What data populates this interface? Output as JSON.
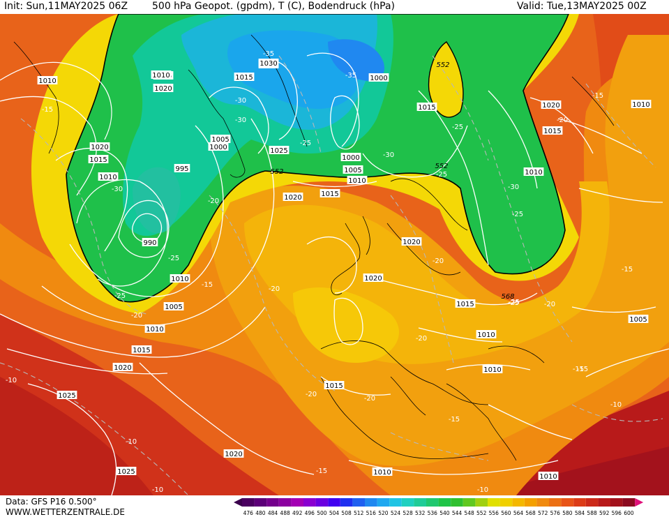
{
  "header": {
    "init": "Init: Sun,11MAY2025 06Z",
    "title": "500 hPa Geopot. (gpdm), T (C), Bodendruck (hPa)",
    "valid": "Valid: Tue,13MAY2025 00Z"
  },
  "footer": {
    "data_source": "Data: GFS P16 0.500°",
    "website": "WWW.WETTERZENTRALE.DE"
  },
  "legend": {
    "values": [
      "476",
      "480",
      "484",
      "488",
      "492",
      "496",
      "500",
      "504",
      "508",
      "512",
      "516",
      "520",
      "524",
      "528",
      "532",
      "536",
      "540",
      "544",
      "548",
      "552",
      "556",
      "560",
      "564",
      "568",
      "572",
      "576",
      "580",
      "584",
      "588",
      "592",
      "596",
      "600"
    ]
  },
  "colors": {
    "deep_low": "#1fb0e8",
    "low": "#3ecb55",
    "green": "#10c040",
    "yellow": "#f0e000",
    "orange": "#f3a40a",
    "red_orange": "#e8561a",
    "red": "#cc2a1a",
    "dark_red": "#a8121c"
  },
  "pressure_labels": [
    {
      "text": "1010"
    },
    {
      "text": "1015"
    },
    {
      "text": "1020"
    },
    {
      "text": "1015"
    },
    {
      "text": "1010"
    },
    {
      "text": "1020"
    },
    {
      "text": "1015"
    },
    {
      "text": "1000"
    },
    {
      "text": "1010"
    },
    {
      "text": "1030"
    },
    {
      "text": "1005"
    },
    {
      "text": "1000"
    },
    {
      "text": "995"
    },
    {
      "text": "990"
    },
    {
      "text": "1025"
    },
    {
      "text": "1000"
    },
    {
      "text": "1005"
    },
    {
      "text": "1010"
    },
    {
      "text": "1015"
    },
    {
      "text": "1020"
    },
    {
      "text": "1015"
    },
    {
      "text": "1020"
    },
    {
      "text": "1010"
    },
    {
      "text": "1015"
    },
    {
      "text": "1020"
    },
    {
      "text": "1010"
    },
    {
      "text": "1005"
    },
    {
      "text": "1010"
    },
    {
      "text": "1015"
    },
    {
      "text": "1020"
    },
    {
      "text": "1025"
    },
    {
      "text": "1000"
    },
    {
      "text": "1005"
    },
    {
      "text": "1010"
    },
    {
      "text": "1015"
    },
    {
      "text": "1020"
    },
    {
      "text": "1025"
    },
    {
      "text": "1015"
    },
    {
      "text": "1010"
    },
    {
      "text": "1010"
    },
    {
      "text": "1005"
    },
    {
      "text": "1015"
    },
    {
      "text": "1010"
    },
    {
      "text": "1020"
    },
    {
      "text": "1010"
    }
  ],
  "temperature_labels": [
    {
      "text": "-15"
    },
    {
      "text": "-35"
    },
    {
      "text": "-35"
    },
    {
      "text": "-30"
    },
    {
      "text": "-30"
    },
    {
      "text": "-25"
    },
    {
      "text": "-30"
    },
    {
      "text": "-20"
    },
    {
      "text": "-30"
    },
    {
      "text": "-25"
    },
    {
      "text": "-25"
    },
    {
      "text": "-20"
    },
    {
      "text": "-15"
    },
    {
      "text": "-20"
    },
    {
      "text": "-20"
    },
    {
      "text": "-25"
    },
    {
      "text": "-30"
    },
    {
      "text": "-25"
    },
    {
      "text": "-25"
    },
    {
      "text": "-20"
    },
    {
      "text": "-15"
    },
    {
      "text": "-20"
    },
    {
      "text": "-15"
    },
    {
      "text": "-20"
    },
    {
      "text": "-20"
    },
    {
      "text": "-20"
    },
    {
      "text": "-15"
    },
    {
      "text": "-10"
    },
    {
      "text": "-15"
    },
    {
      "text": "-10"
    },
    {
      "text": "-10"
    },
    {
      "text": "-15"
    },
    {
      "text": "-10"
    },
    {
      "text": "-10"
    },
    {
      "text": "-25"
    },
    {
      "text": "-15"
    },
    {
      "text": "-25"
    }
  ],
  "geopot_labels": [
    {
      "text": "552"
    },
    {
      "text": "552"
    },
    {
      "text": "552"
    },
    {
      "text": "568"
    }
  ]
}
